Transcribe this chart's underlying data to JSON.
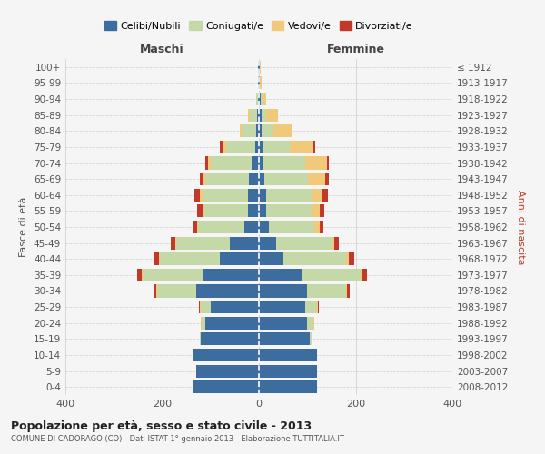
{
  "age_groups": [
    "0-4",
    "5-9",
    "10-14",
    "15-19",
    "20-24",
    "25-29",
    "30-34",
    "35-39",
    "40-44",
    "45-49",
    "50-54",
    "55-59",
    "60-64",
    "65-69",
    "70-74",
    "75-79",
    "80-84",
    "85-89",
    "90-94",
    "95-99",
    "100+"
  ],
  "birth_years": [
    "2008-2012",
    "2003-2007",
    "1998-2002",
    "1993-1997",
    "1988-1992",
    "1983-1987",
    "1978-1982",
    "1973-1977",
    "1968-1972",
    "1963-1967",
    "1958-1962",
    "1953-1957",
    "1948-1952",
    "1943-1947",
    "1938-1942",
    "1933-1937",
    "1928-1932",
    "1923-1927",
    "1918-1922",
    "1913-1917",
    "≤ 1912"
  ],
  "males": {
    "celibi": [
      135,
      130,
      135,
      120,
      110,
      100,
      130,
      115,
      80,
      60,
      30,
      22,
      22,
      20,
      15,
      8,
      5,
      4,
      2,
      1,
      2
    ],
    "coniugati": [
      0,
      0,
      0,
      3,
      8,
      20,
      80,
      125,
      125,
      110,
      95,
      90,
      95,
      90,
      85,
      60,
      30,
      15,
      3,
      0,
      0
    ],
    "vedovi": [
      0,
      0,
      0,
      0,
      2,
      2,
      2,
      2,
      2,
      2,
      3,
      3,
      5,
      5,
      5,
      8,
      5,
      3,
      1,
      0,
      0
    ],
    "divorziati": [
      0,
      0,
      0,
      0,
      0,
      2,
      5,
      10,
      10,
      10,
      8,
      12,
      12,
      8,
      5,
      5,
      0,
      0,
      0,
      0,
      0
    ]
  },
  "females": {
    "nubili": [
      120,
      120,
      120,
      105,
      100,
      95,
      100,
      90,
      50,
      35,
      20,
      15,
      15,
      12,
      10,
      8,
      5,
      5,
      3,
      2,
      2
    ],
    "coniugate": [
      0,
      0,
      0,
      4,
      12,
      25,
      80,
      120,
      130,
      115,
      95,
      95,
      95,
      90,
      85,
      55,
      25,
      10,
      4,
      0,
      0
    ],
    "vedove": [
      0,
      0,
      0,
      0,
      2,
      2,
      3,
      3,
      5,
      5,
      10,
      15,
      20,
      35,
      45,
      50,
      40,
      25,
      8,
      3,
      2
    ],
    "divorziate": [
      0,
      0,
      0,
      0,
      0,
      2,
      5,
      10,
      12,
      10,
      8,
      10,
      12,
      8,
      5,
      3,
      0,
      0,
      0,
      0,
      0
    ]
  },
  "colors": {
    "celibi": "#3d6d9e",
    "coniugati": "#c5d9a8",
    "vedovi": "#f0c97a",
    "divorziati": "#c0392b"
  },
  "xlim": 400,
  "title": "Popolazione per età, sesso e stato civile - 2013",
  "subtitle": "COMUNE DI CADORAGO (CO) - Dati ISTAT 1° gennaio 2013 - Elaborazione TUTTITALIA.IT",
  "ylabel_left": "Fasce di età",
  "ylabel_right": "Anni di nascita",
  "xlabel_left": "Maschi",
  "xlabel_right": "Femmine",
  "legend_labels": [
    "Celibi/Nubili",
    "Coniugati/e",
    "Vedovi/e",
    "Divorziati/e"
  ],
  "background_color": "#f5f5f5",
  "grid_color": "#cccccc"
}
